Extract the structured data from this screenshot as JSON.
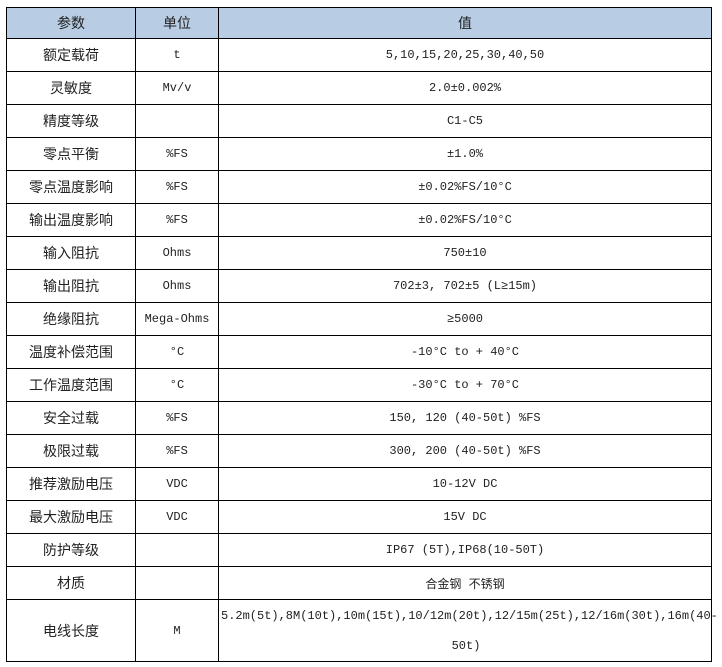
{
  "header": {
    "param": "参数",
    "unit": "单位",
    "value": "值"
  },
  "rows": [
    {
      "param": "额定载荷",
      "unit": "t",
      "value": "5,10,15,20,25,30,40,50"
    },
    {
      "param": "灵敏度",
      "unit": "Mv/v",
      "value": "2.0±0.002%"
    },
    {
      "param": "精度等级",
      "unit": "",
      "value": "C1-C5"
    },
    {
      "param": "零点平衡",
      "unit": "%FS",
      "value": "±1.0%"
    },
    {
      "param": "零点温度影响",
      "unit": "%FS",
      "value": "±0.02%FS/10°C"
    },
    {
      "param": "输出温度影响",
      "unit": "%FS",
      "value": "±0.02%FS/10°C"
    },
    {
      "param": "输入阻抗",
      "unit": "Ohms",
      "value": "750±10"
    },
    {
      "param": "输出阻抗",
      "unit": "Ohms",
      "value": "702±3, 702±5 (L≥15m)"
    },
    {
      "param": "绝缘阻抗",
      "unit": "Mega-Ohms",
      "value": "≥5000"
    },
    {
      "param": "温度补偿范围",
      "unit": "°C",
      "value": "-10°C to + 40°C"
    },
    {
      "param": "工作温度范围",
      "unit": "°C",
      "value": "-30°C to + 70°C"
    },
    {
      "param": "安全过载",
      "unit": "%FS",
      "value": "150, 120 (40-50t) %FS"
    },
    {
      "param": "极限过载",
      "unit": "%FS",
      "value": "300, 200 (40-50t) %FS"
    },
    {
      "param": "推荐激励电压",
      "unit": "VDC",
      "value": "10-12V DC"
    },
    {
      "param": "最大激励电压",
      "unit": "VDC",
      "value": "15V DC"
    },
    {
      "param": "防护等级",
      "unit": "",
      "value": "IP67 (5T),IP68(10-50T)"
    },
    {
      "param": "材质",
      "unit": "",
      "value": "合金钢 不锈钢"
    },
    {
      "param": "电线长度",
      "unit": "M",
      "value": "5.2m(5t),8M(10t),10m(15t),10/12m(20t),12/15m(25t),12/16m(30t),16m(40-50t)"
    }
  ]
}
